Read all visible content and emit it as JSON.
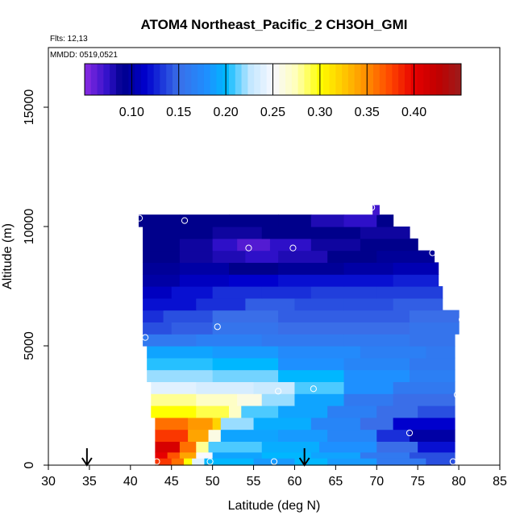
{
  "chart_data": {
    "type": "heatmap",
    "title": "ATOM4 Northeast_Pacific_2 CH3OH_GMI",
    "flights_note": "Flts: 12,13",
    "dates_note": "MMDD: 0519,0521",
    "xlabel": "Latitude (deg N)",
    "ylabel": "Altitude (m)",
    "xlim": [
      30,
      85
    ],
    "ylim": [
      0,
      17500
    ],
    "x_ticks": [
      30,
      35,
      40,
      45,
      50,
      55,
      60,
      65,
      70,
      75,
      80,
      85
    ],
    "y_ticks": [
      0,
      5000,
      10000,
      15000
    ],
    "colorbar": {
      "range": [
        0.05,
        0.45
      ],
      "ticks": [
        0.1,
        0.15,
        0.2,
        0.25,
        0.3,
        0.35,
        0.4
      ],
      "tick_labels": [
        "0.10",
        "0.15",
        "0.20",
        "0.25",
        "0.30",
        "0.35",
        "0.40"
      ],
      "stops": [
        {
          "v": 0.05,
          "c": "#8a2be2"
        },
        {
          "v": 0.075,
          "c": "#2e10c8"
        },
        {
          "v": 0.09,
          "c": "#00008b"
        },
        {
          "v": 0.115,
          "c": "#0000cd"
        },
        {
          "v": 0.15,
          "c": "#3a6ee8"
        },
        {
          "v": 0.18,
          "c": "#1e90ff"
        },
        {
          "v": 0.2,
          "c": "#00b7ff"
        },
        {
          "v": 0.225,
          "c": "#bfe6ff"
        },
        {
          "v": 0.25,
          "c": "#f8f8ff"
        },
        {
          "v": 0.275,
          "c": "#ffffb8"
        },
        {
          "v": 0.3,
          "c": "#ffff00"
        },
        {
          "v": 0.325,
          "c": "#ffc800"
        },
        {
          "v": 0.35,
          "c": "#ff8c00"
        },
        {
          "v": 0.375,
          "c": "#ff4500"
        },
        {
          "v": 0.4,
          "c": "#e60000"
        },
        {
          "v": 0.425,
          "c": "#c00000"
        },
        {
          "v": 0.45,
          "c": "#9b1c1c"
        }
      ]
    },
    "field": {
      "bands": [
        {
          "alt": [
            0,
            300
          ],
          "lat_left": 43,
          "lat_right": 79.5,
          "segments": [
            [
              43,
              0.38
            ],
            [
              45,
              0.36
            ],
            [
              46.5,
              0.3
            ],
            [
              47.5,
              0.24
            ],
            [
              49,
              0.2
            ],
            [
              55,
              0.185
            ],
            [
              60,
              0.2
            ],
            [
              64,
              0.185
            ],
            [
              70,
              0.16
            ],
            [
              76,
              0.14
            ]
          ]
        },
        {
          "alt": [
            300,
            550
          ],
          "lat_left": 43,
          "lat_right": 79.5,
          "segments": [
            [
              43,
              0.4
            ],
            [
              44.5,
              0.37
            ],
            [
              46,
              0.34
            ],
            [
              48,
              0.25
            ],
            [
              50,
              0.19
            ],
            [
              56,
              0.2
            ],
            [
              62,
              0.19
            ],
            [
              68,
              0.16
            ],
            [
              74,
              0.14
            ]
          ]
        },
        {
          "alt": [
            550,
            1000
          ],
          "lat_left": 43,
          "lat_right": 79.5,
          "segments": [
            [
              43,
              0.41
            ],
            [
              46,
              0.36
            ],
            [
              48,
              0.28
            ],
            [
              49.5,
              0.21
            ],
            [
              56,
              0.195
            ],
            [
              63,
              0.18
            ],
            [
              70,
              0.15
            ],
            [
              75,
              0.12
            ]
          ]
        },
        {
          "alt": [
            1000,
            1500
          ],
          "lat_left": 43,
          "lat_right": 79.5,
          "segments": [
            [
              43,
              0.38
            ],
            [
              47,
              0.34
            ],
            [
              49.5,
              0.26
            ],
            [
              51,
              0.19
            ],
            [
              58,
              0.185
            ],
            [
              64,
              0.17
            ],
            [
              70,
              0.13
            ],
            [
              74,
              0.1
            ]
          ]
        },
        {
          "alt": [
            1500,
            2000
          ],
          "lat_left": 43,
          "lat_right": 79.5,
          "segments": [
            [
              43,
              0.36
            ],
            [
              47,
              0.345
            ],
            [
              50,
              0.32
            ],
            [
              51,
              0.22
            ],
            [
              55,
              0.195
            ],
            [
              62,
              0.17
            ],
            [
              68,
              0.15
            ],
            [
              72,
              0.115
            ]
          ]
        },
        {
          "alt": [
            2000,
            2500
          ],
          "lat_left": 42.5,
          "lat_right": 79.5,
          "segments": [
            [
              42.5,
              0.3
            ],
            [
              48,
              0.29
            ],
            [
              52,
              0.27
            ],
            [
              53.5,
              0.21
            ],
            [
              58,
              0.19
            ],
            [
              64,
              0.165
            ],
            [
              70,
              0.15
            ],
            [
              75,
              0.14
            ]
          ]
        },
        {
          "alt": [
            2500,
            3000
          ],
          "lat_left": 42.5,
          "lat_right": 79.5,
          "segments": [
            [
              42.5,
              0.28
            ],
            [
              48,
              0.27
            ],
            [
              53,
              0.26
            ],
            [
              56,
              0.22
            ],
            [
              60,
              0.19
            ],
            [
              66,
              0.16
            ],
            [
              72,
              0.15
            ]
          ]
        },
        {
          "alt": [
            3000,
            3500
          ],
          "lat_left": 42.5,
          "lat_right": 79.5,
          "segments": [
            [
              42.5,
              0.24
            ],
            [
              48,
              0.235
            ],
            [
              55,
              0.23
            ],
            [
              60,
              0.21
            ],
            [
              66,
              0.18
            ],
            [
              72,
              0.16
            ]
          ]
        },
        {
          "alt": [
            3500,
            4000
          ],
          "lat_left": 42,
          "lat_right": 79.5,
          "segments": [
            [
              42,
              0.22
            ],
            [
              50,
              0.215
            ],
            [
              58,
              0.2
            ],
            [
              66,
              0.18
            ],
            [
              74,
              0.165
            ]
          ]
        },
        {
          "alt": [
            4000,
            4500
          ],
          "lat_left": 42,
          "lat_right": 79.5,
          "segments": [
            [
              42,
              0.205
            ],
            [
              50,
              0.2
            ],
            [
              58,
              0.18
            ],
            [
              66,
              0.17
            ],
            [
              74,
              0.16
            ]
          ]
        },
        {
          "alt": [
            4500,
            5000
          ],
          "lat_left": 42,
          "lat_right": 79.5,
          "segments": [
            [
              42,
              0.19
            ],
            [
              50,
              0.185
            ],
            [
              58,
              0.175
            ],
            [
              68,
              0.165
            ],
            [
              76,
              0.16
            ]
          ]
        },
        {
          "alt": [
            5000,
            5500
          ],
          "lat_left": 41.5,
          "lat_right": 79.5,
          "segments": [
            [
              41.5,
              0.16
            ],
            [
              48,
              0.165
            ],
            [
              56,
              0.16
            ],
            [
              66,
              0.16
            ],
            [
              74,
              0.155
            ]
          ]
        },
        {
          "alt": [
            5500,
            6000
          ],
          "lat_left": 41.5,
          "lat_right": 80,
          "segments": [
            [
              41.5,
              0.14
            ],
            [
              45,
              0.145
            ],
            [
              50,
              0.155
            ],
            [
              58,
              0.15
            ],
            [
              66,
              0.15
            ],
            [
              74,
              0.155
            ]
          ]
        },
        {
          "alt": [
            6000,
            6500
          ],
          "lat_left": 41.5,
          "lat_right": 80,
          "segments": [
            [
              41.5,
              0.13
            ],
            [
              44,
              0.14
            ],
            [
              50,
              0.15
            ],
            [
              58,
              0.145
            ],
            [
              66,
              0.145
            ],
            [
              74,
              0.15
            ]
          ]
        },
        {
          "alt": [
            6500,
            7000
          ],
          "lat_left": 41.5,
          "lat_right": 78,
          "segments": [
            [
              41.5,
              0.12
            ],
            [
              44,
              0.12
            ],
            [
              48,
              0.13
            ],
            [
              54,
              0.145
            ],
            [
              60,
              0.14
            ],
            [
              66,
              0.14
            ],
            [
              72,
              0.145
            ]
          ]
        },
        {
          "alt": [
            7000,
            7500
          ],
          "lat_left": 41.5,
          "lat_right": 78,
          "segments": [
            [
              41.5,
              0.11
            ],
            [
              45,
              0.12
            ],
            [
              50,
              0.13
            ],
            [
              56,
              0.13
            ],
            [
              62,
              0.135
            ],
            [
              70,
              0.135
            ]
          ]
        },
        {
          "alt": [
            7500,
            8000
          ],
          "lat_left": 41.5,
          "lat_right": 77.5,
          "segments": [
            [
              41.5,
              0.1
            ],
            [
              46,
              0.11
            ],
            [
              52,
              0.115
            ],
            [
              58,
              0.12
            ],
            [
              66,
              0.12
            ],
            [
              72,
              0.125
            ]
          ]
        },
        {
          "alt": [
            8000,
            8500
          ],
          "lat_left": 41.5,
          "lat_right": 77.5,
          "segments": [
            [
              41.5,
              0.095
            ],
            [
              46,
              0.1
            ],
            [
              52,
              0.09
            ],
            [
              58,
              0.095
            ],
            [
              66,
              0.1
            ],
            [
              72,
              0.105
            ]
          ]
        },
        {
          "alt": [
            8500,
            9000
          ],
          "lat_left": 41.5,
          "lat_right": 77,
          "segments": [
            [
              41.5,
              0.09
            ],
            [
              46,
              0.085
            ],
            [
              50,
              0.08
            ],
            [
              54,
              0.075
            ],
            [
              58,
              0.08
            ],
            [
              64,
              0.09
            ],
            [
              70,
              0.095
            ]
          ]
        },
        {
          "alt": [
            9000,
            9500
          ],
          "lat_left": 41.5,
          "lat_right": 75,
          "segments": [
            [
              41.5,
              0.09
            ],
            [
              46,
              0.085
            ],
            [
              50,
              0.075
            ],
            [
              53,
              0.065
            ],
            [
              57,
              0.075
            ],
            [
              62,
              0.085
            ],
            [
              68,
              0.09
            ]
          ]
        },
        {
          "alt": [
            9500,
            10000
          ],
          "lat_left": 41.5,
          "lat_right": 74,
          "segments": [
            [
              41.5,
              0.09
            ],
            [
              46,
              0.09
            ],
            [
              50,
              0.085
            ],
            [
              56,
              0.09
            ],
            [
              62,
              0.09
            ],
            [
              68,
              0.085
            ]
          ]
        },
        {
          "alt": [
            10000,
            10500
          ],
          "lat_left": 41,
          "lat_right": 72,
          "segments": [
            [
              41,
              0.09
            ],
            [
              46,
              0.09
            ],
            [
              52,
              0.09
            ],
            [
              58,
              0.09
            ],
            [
              62,
              0.08
            ],
            [
              66,
              0.075
            ],
            [
              70,
              0.09
            ]
          ]
        },
        {
          "alt": [
            10500,
            10900
          ],
          "lat_left": 69.5,
          "lat_right": 70.3,
          "segments": [
            [
              69.5,
              0.07
            ]
          ]
        }
      ],
      "sample_points": [
        {
          "lat": 43.2,
          "alt": 150
        },
        {
          "lat": 49.7,
          "alt": 150
        },
        {
          "lat": 57.5,
          "alt": 150
        },
        {
          "lat": 79.3,
          "alt": 150
        },
        {
          "lat": 74.0,
          "alt": 1350
        },
        {
          "lat": 79.8,
          "alt": 2950
        },
        {
          "lat": 58.0,
          "alt": 3100
        },
        {
          "lat": 62.3,
          "alt": 3200
        },
        {
          "lat": 41.8,
          "alt": 5350
        },
        {
          "lat": 50.6,
          "alt": 5800
        },
        {
          "lat": 80.4,
          "alt": 6100
        },
        {
          "lat": 54.4,
          "alt": 9100
        },
        {
          "lat": 59.8,
          "alt": 9100
        },
        {
          "lat": 76.8,
          "alt": 8900
        },
        {
          "lat": 46.6,
          "alt": 10250
        },
        {
          "lat": 41.1,
          "alt": 10350
        },
        {
          "lat": 69.4,
          "alt": 10800
        }
      ],
      "arrows": [
        34.7,
        61.2
      ]
    }
  }
}
